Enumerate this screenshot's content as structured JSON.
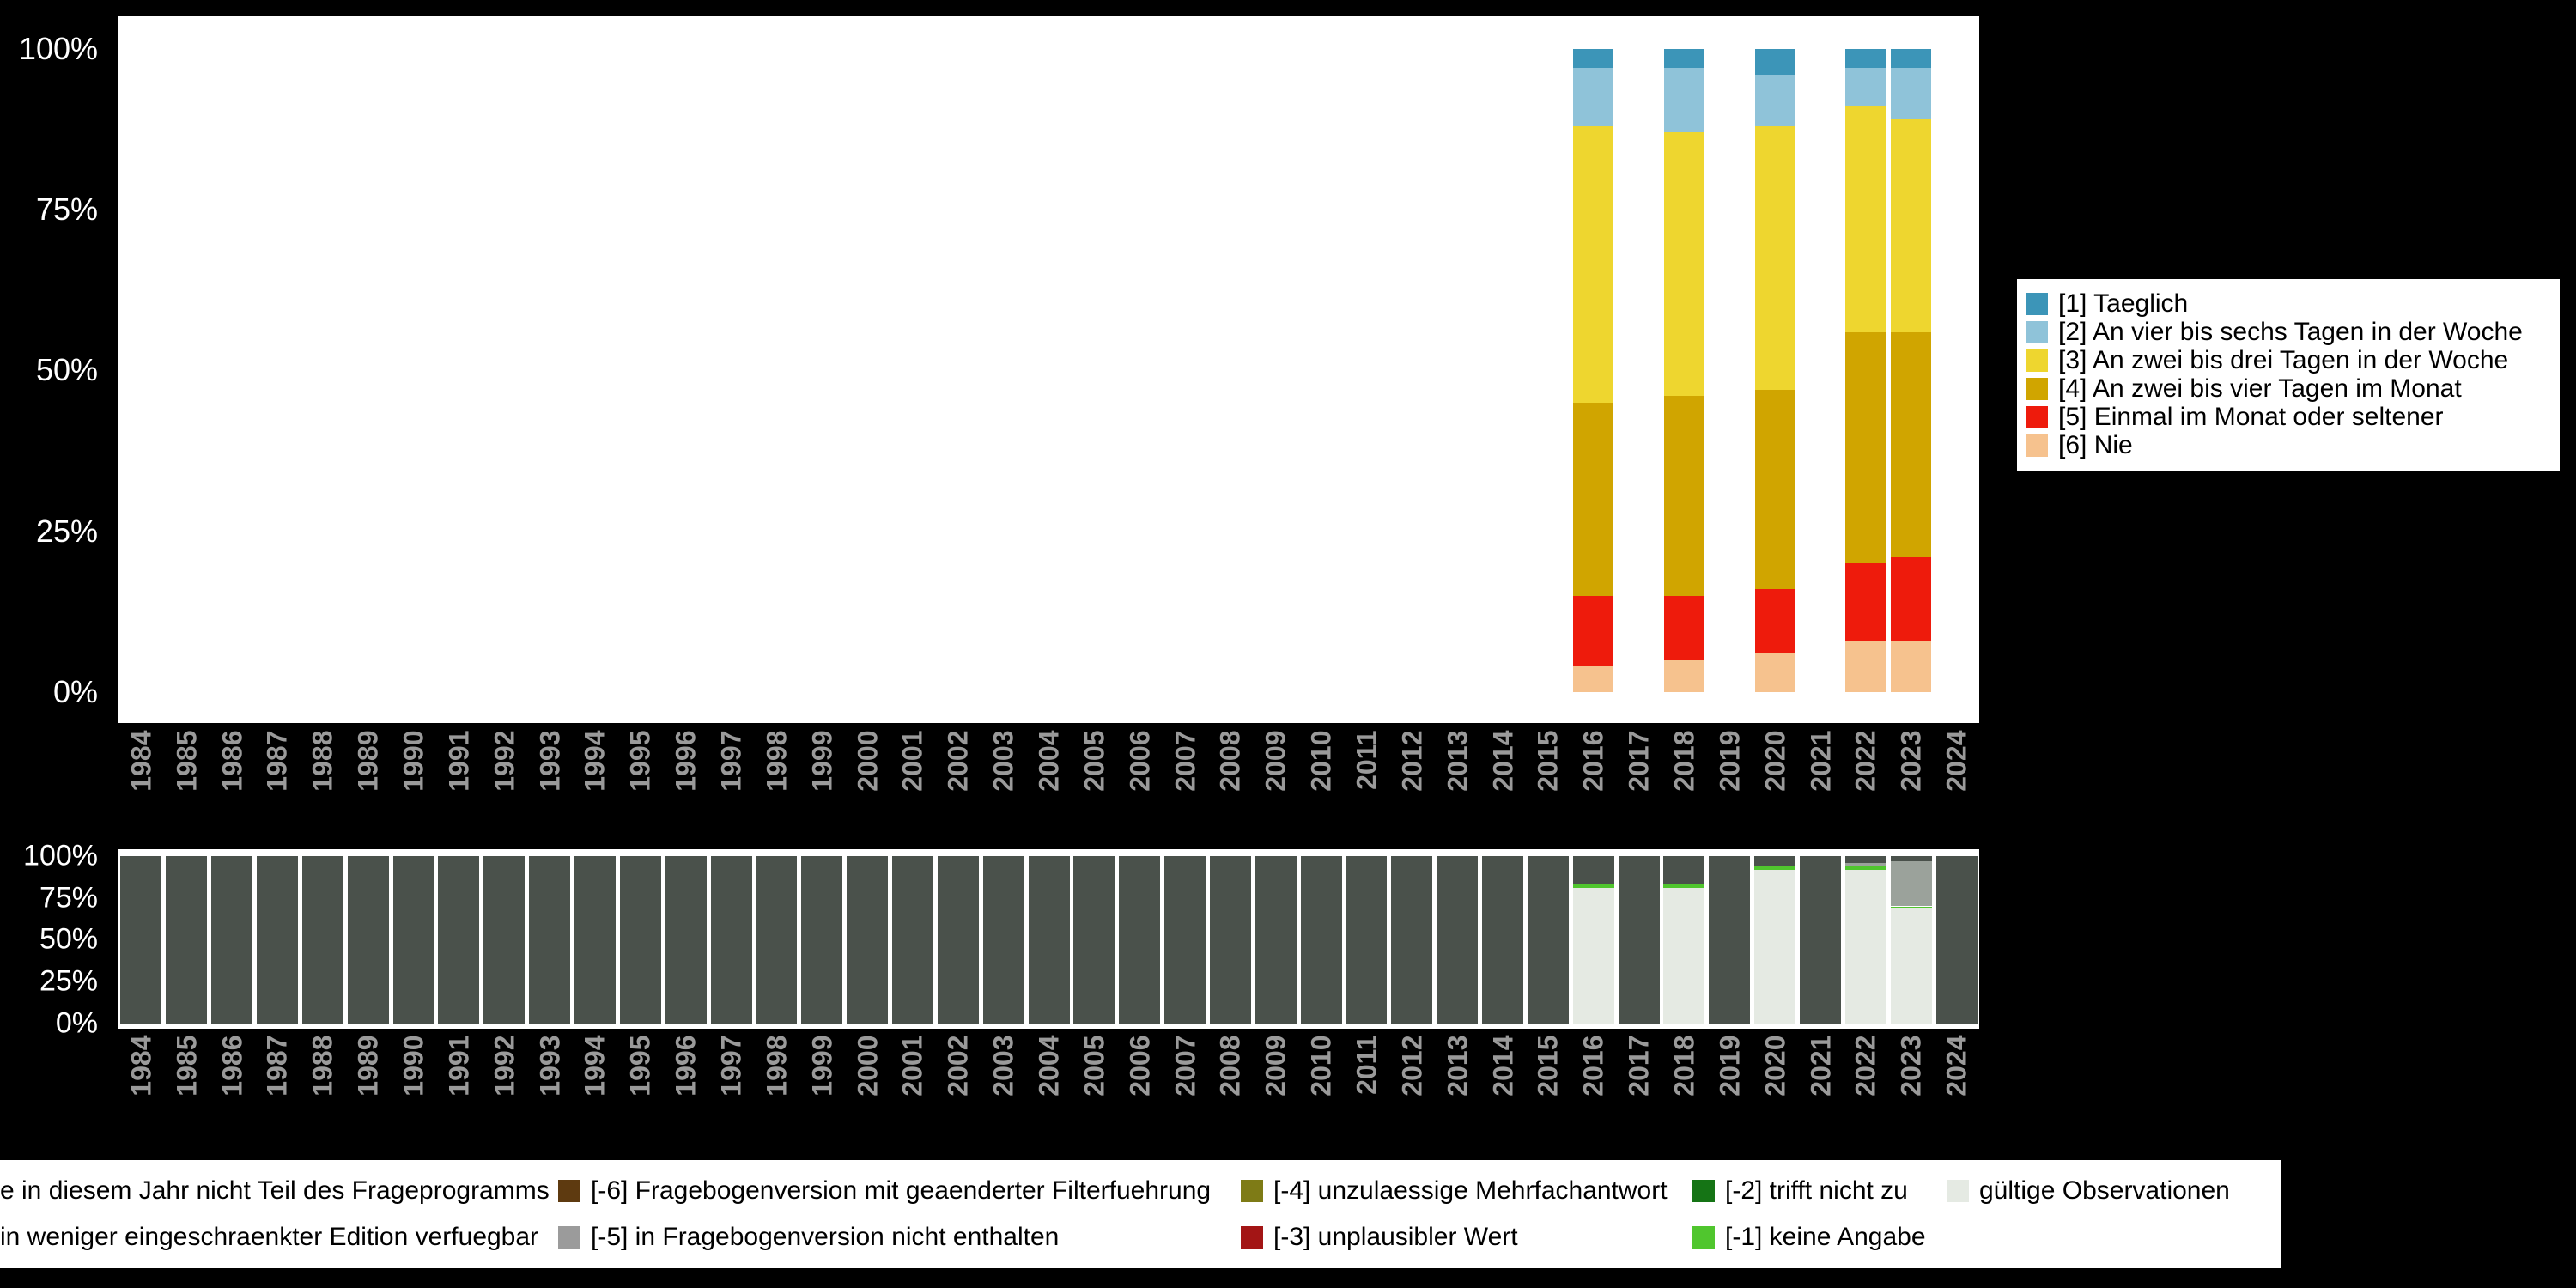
{
  "background_color": "#000000",
  "axis": {
    "year_label_color": "#9A9A9A",
    "tick_label_color": "#FFFFFF"
  },
  "years": [
    "1984",
    "1985",
    "1986",
    "1987",
    "1988",
    "1989",
    "1990",
    "1991",
    "1992",
    "1993",
    "1994",
    "1995",
    "1996",
    "1997",
    "1998",
    "1999",
    "2000",
    "2001",
    "2002",
    "2003",
    "2004",
    "2005",
    "2006",
    "2007",
    "2008",
    "2009",
    "2010",
    "2011",
    "2012",
    "2013",
    "2014",
    "2015",
    "2016",
    "2017",
    "2018",
    "2019",
    "2020",
    "2021",
    "2022",
    "2023",
    "2024"
  ],
  "top_chart": {
    "y_ticks": [
      "100%",
      "75%",
      "50%",
      "25%",
      "0%"
    ],
    "legend": [
      {
        "label": "[1] Taeglich",
        "color": "#3C95B8"
      },
      {
        "label": "[2] An vier bis sechs Tagen in der Woche",
        "color": "#8FC3D9"
      },
      {
        "label": "[3] An zwei bis drei Tagen in der Woche",
        "color": "#EED62F"
      },
      {
        "label": "[4] An zwei bis vier Tagen im Monat",
        "color": "#D0A500"
      },
      {
        "label": "[5] Einmal im Monat oder seltener",
        "color": "#EE1B0C"
      },
      {
        "label": "[6] Nie",
        "color": "#F6C28E"
      }
    ]
  },
  "bottom_chart": {
    "y_ticks": [
      "100%",
      "75%",
      "50%",
      "25%",
      "0%"
    ]
  },
  "missing_legend": {
    "rows": [
      [
        {
          "label": "e in diesem Jahr nicht Teil des Frageprogramms",
          "color": "#4A514B",
          "clipped": true
        },
        {
          "label": "[-6] Fragebogenversion mit geaenderter Filterfuehrung",
          "color": "#5E3A10"
        },
        {
          "label": "[-4] unzulaessige Mehrfachantwort",
          "color": "#7E7B16"
        },
        {
          "label": "[-2] trifft nicht zu",
          "color": "#157415"
        },
        {
          "label": "gültige Observationen",
          "color": "#E5EAE3"
        }
      ],
      [
        {
          "label": "in weniger eingeschraenkter Edition verfuegbar",
          "color": "#9BA29B",
          "clipped": true
        },
        {
          "label": "[-5] in Fragebogenversion nicht enthalten",
          "color": "#9B9B9B"
        },
        {
          "label": "[-3] unplausibler Wert",
          "color": "#A31515"
        },
        {
          "label": "[-1] keine Angabe",
          "color": "#50C62E"
        }
      ]
    ]
  },
  "chart_data": [
    {
      "type": "bar",
      "stacked": true,
      "unit": "percent",
      "title": "",
      "xlabel": "",
      "ylabel": "",
      "ylim": [
        0,
        100
      ],
      "y_tick_labels": [
        "0%",
        "25%",
        "50%",
        "75%",
        "100%"
      ],
      "x_axis_tick_range": [
        "1984",
        "2024"
      ],
      "legend_position": "right",
      "categories": [
        "2016",
        "2018",
        "2020",
        "2022",
        "2023"
      ],
      "series": [
        {
          "name": "[1] Taeglich",
          "color": "#3C95B8",
          "values": [
            3,
            3,
            4,
            3,
            3
          ]
        },
        {
          "name": "[2] An vier bis sechs Tagen in der Woche",
          "color": "#8FC3D9",
          "values": [
            9,
            10,
            8,
            6,
            8
          ]
        },
        {
          "name": "[3] An zwei bis drei Tagen in der Woche",
          "color": "#EED62F",
          "values": [
            43,
            41,
            41,
            35,
            33
          ]
        },
        {
          "name": "[4] An zwei bis vier Tagen im Monat",
          "color": "#D0A500",
          "values": [
            30,
            31,
            31,
            36,
            35
          ]
        },
        {
          "name": "[5] Einmal im Monat oder seltener",
          "color": "#EE1B0C",
          "values": [
            11,
            10,
            10,
            12,
            13
          ]
        },
        {
          "name": "[6] Nie",
          "color": "#F6C28E",
          "values": [
            4,
            5,
            6,
            8,
            8
          ]
        }
      ]
    },
    {
      "type": "bar",
      "stacked": true,
      "unit": "percent",
      "title": "",
      "xlabel": "",
      "ylabel": "",
      "ylim": [
        0,
        100
      ],
      "y_tick_labels": [
        "0%",
        "25%",
        "50%",
        "75%",
        "100%"
      ],
      "legend_position": "bottom",
      "categories": [
        "1984",
        "1985",
        "1986",
        "1987",
        "1988",
        "1989",
        "1990",
        "1991",
        "1992",
        "1993",
        "1994",
        "1995",
        "1996",
        "1997",
        "1998",
        "1999",
        "2000",
        "2001",
        "2002",
        "2003",
        "2004",
        "2005",
        "2006",
        "2007",
        "2008",
        "2009",
        "2010",
        "2011",
        "2012",
        "2013",
        "2014",
        "2015",
        "2016",
        "2017",
        "2018",
        "2019",
        "2020",
        "2021",
        "2022",
        "2023",
        "2024"
      ],
      "series": [
        {
          "name": "gültige Observationen",
          "color": "#E5EAE3",
          "values": [
            0,
            0,
            0,
            0,
            0,
            0,
            0,
            0,
            0,
            0,
            0,
            0,
            0,
            0,
            0,
            0,
            0,
            0,
            0,
            0,
            0,
            0,
            0,
            0,
            0,
            0,
            0,
            0,
            0,
            0,
            0,
            0,
            81,
            0,
            81,
            0,
            92,
            0,
            92,
            69,
            0
          ]
        },
        {
          "name": "[-1] keine Angabe",
          "color": "#50C62E",
          "values": [
            0,
            0,
            0,
            0,
            0,
            0,
            0,
            0,
            0,
            0,
            0,
            0,
            0,
            0,
            0,
            0,
            0,
            0,
            0,
            0,
            0,
            0,
            0,
            0,
            0,
            0,
            0,
            0,
            0,
            0,
            0,
            0,
            2,
            0,
            2,
            0,
            2,
            0,
            2,
            1,
            0
          ]
        },
        {
          "name": "in weniger eingeschraenkter Edition verfuegbar",
          "color": "#9BA29B",
          "values": [
            0,
            0,
            0,
            0,
            0,
            0,
            0,
            0,
            0,
            0,
            0,
            0,
            0,
            0,
            0,
            0,
            0,
            0,
            0,
            0,
            0,
            0,
            0,
            0,
            0,
            0,
            0,
            0,
            0,
            0,
            0,
            0,
            0,
            0,
            0,
            0,
            0,
            0,
            2,
            27,
            0
          ]
        },
        {
          "name": "nicht Teil des Frageprogramms",
          "color": "#4A514B",
          "values": [
            100,
            100,
            100,
            100,
            100,
            100,
            100,
            100,
            100,
            100,
            100,
            100,
            100,
            100,
            100,
            100,
            100,
            100,
            100,
            100,
            100,
            100,
            100,
            100,
            100,
            100,
            100,
            100,
            100,
            100,
            100,
            100,
            17,
            100,
            17,
            100,
            6,
            100,
            4,
            3,
            100
          ]
        }
      ]
    }
  ]
}
